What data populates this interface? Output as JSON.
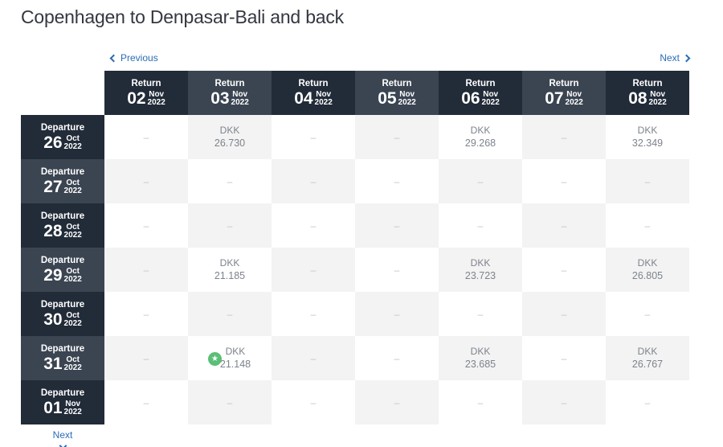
{
  "title": "Copenhagen to Denpasar-Bali and back",
  "nav": {
    "previous": "Previous",
    "next": "Next"
  },
  "labels": {
    "return": "Return",
    "departure": "Departure",
    "empty": "–",
    "currency": "DKK"
  },
  "returns": [
    {
      "day": "02",
      "month": "Nov",
      "year": "2022"
    },
    {
      "day": "03",
      "month": "Nov",
      "year": "2022"
    },
    {
      "day": "04",
      "month": "Nov",
      "year": "2022"
    },
    {
      "day": "05",
      "month": "Nov",
      "year": "2022"
    },
    {
      "day": "06",
      "month": "Nov",
      "year": "2022"
    },
    {
      "day": "07",
      "month": "Nov",
      "year": "2022"
    },
    {
      "day": "08",
      "month": "Nov",
      "year": "2022"
    }
  ],
  "departures": [
    {
      "day": "26",
      "month": "Oct",
      "year": "2022"
    },
    {
      "day": "27",
      "month": "Oct",
      "year": "2022"
    },
    {
      "day": "28",
      "month": "Oct",
      "year": "2022"
    },
    {
      "day": "29",
      "month": "Oct",
      "year": "2022"
    },
    {
      "day": "30",
      "month": "Oct",
      "year": "2022"
    },
    {
      "day": "31",
      "month": "Oct",
      "year": "2022"
    },
    {
      "day": "01",
      "month": "Nov",
      "year": "2022"
    }
  ],
  "prices": [
    [
      null,
      "26.730",
      null,
      null,
      "29.268",
      null,
      "32.349"
    ],
    [
      null,
      null,
      null,
      null,
      null,
      null,
      null
    ],
    [
      null,
      null,
      null,
      null,
      null,
      null,
      null
    ],
    [
      null,
      "21.185",
      null,
      null,
      "23.723",
      null,
      "26.805"
    ],
    [
      null,
      null,
      null,
      null,
      null,
      null,
      null
    ],
    [
      null,
      "21.148",
      null,
      null,
      "23.685",
      null,
      "26.767"
    ],
    [
      null,
      null,
      null,
      null,
      null,
      null,
      null
    ]
  ],
  "cheapest": {
    "row": 5,
    "col": 1,
    "icon": "star-icon",
    "color": "#5cbf77"
  },
  "colors": {
    "header_dark": "#222b38",
    "header_mid": "#3b4552",
    "link": "#2a6db5",
    "cell_light": "#f3f3f3"
  }
}
